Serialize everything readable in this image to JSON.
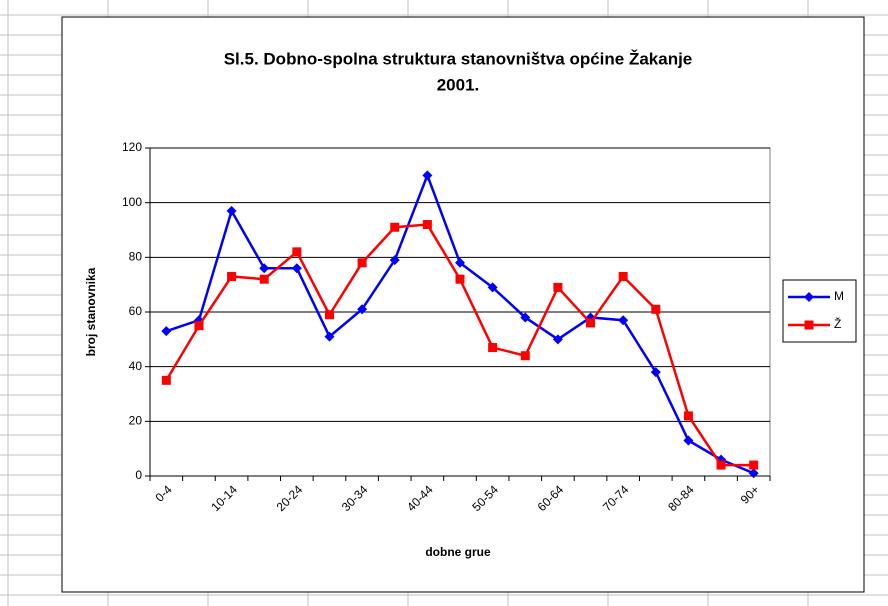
{
  "chart_data": {
    "type": "line",
    "title": [
      "Sl.5. Dobno-spolna struktura stanovništva općine Žakanje",
      "2001."
    ],
    "x_label": "dobne grue",
    "y_label": "broj stanovnika",
    "categories": [
      "0-4",
      null,
      "10-14",
      null,
      "20-24",
      null,
      "30-34",
      null,
      "40-44",
      null,
      "50-54",
      null,
      "60-64",
      null,
      "70-74",
      null,
      "80-84",
      null,
      "90+"
    ],
    "series": [
      {
        "name": "M",
        "color": "#0000ff",
        "marker": "diamond",
        "values": [
          53,
          57,
          97,
          76,
          76,
          51,
          61,
          79,
          110,
          78,
          69,
          58,
          50,
          58,
          57,
          38,
          13,
          6,
          1
        ]
      },
      {
        "name": "Ž",
        "color": "#ff0000",
        "marker": "square",
        "values": [
          35,
          55,
          73,
          72,
          82,
          59,
          78,
          91,
          92,
          72,
          47,
          44,
          69,
          56,
          73,
          61,
          22,
          4,
          4
        ]
      }
    ],
    "ylim": [
      0,
      120
    ],
    "yticks": [
      0,
      20,
      40,
      60,
      80,
      100,
      120
    ],
    "grid": true,
    "legend": "right"
  }
}
